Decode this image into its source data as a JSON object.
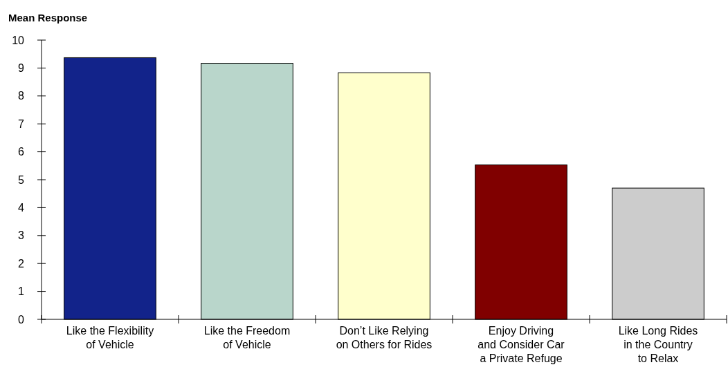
{
  "chart_data": {
    "type": "bar",
    "ylabel": "Mean Response",
    "categories": [
      "Like the Flexibility\nof Vehicle",
      "Like the Freedom\nof Vehicle",
      "Don’t Like Relying\non Others for Rides",
      "Enjoy Driving\nand Consider Car\na Private Refuge",
      "Like Long Rides\nin the Country\nto Relax"
    ],
    "values": [
      9.37,
      9.17,
      8.83,
      5.53,
      4.7
    ],
    "colors": [
      "#12238a",
      "#b9d6cb",
      "#ffffcc",
      "#800000",
      "#cccccc"
    ],
    "ylim": [
      0,
      10
    ],
    "yticks": [
      0,
      1,
      2,
      3,
      4,
      5,
      6,
      7,
      8,
      9,
      10
    ],
    "grid": false
  }
}
